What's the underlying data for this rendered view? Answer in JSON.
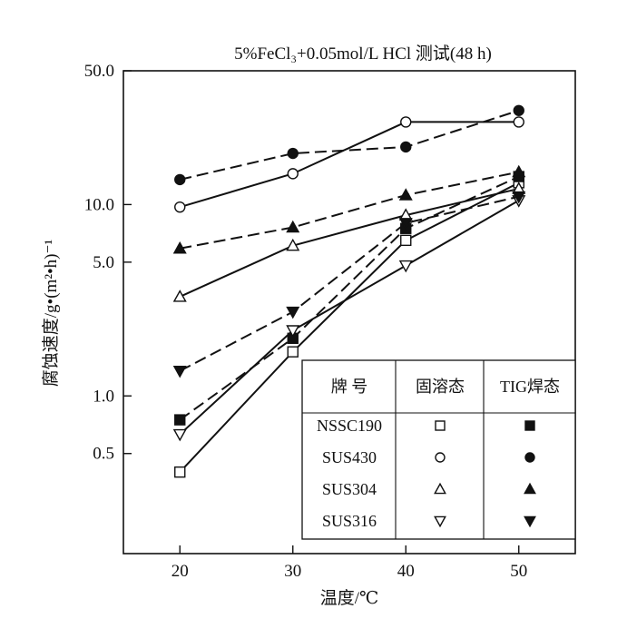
{
  "chart_data": {
    "type": "line",
    "title": "5%FeCl₃+0.05mol/L HCl 测试(48 h)",
    "xlabel": "温度/℃",
    "ylabel": "腐蚀速度/g•(m²•h)⁻¹",
    "x": [
      20,
      30,
      40,
      50
    ],
    "xlim": [
      15,
      55
    ],
    "ylim": [
      0.15,
      50
    ],
    "yscale": "log",
    "xticks": [
      "20",
      "30",
      "40",
      "50"
    ],
    "yticks": [
      {
        "value": 50,
        "label": "50.0"
      },
      {
        "value": 10,
        "label": "10.0"
      },
      {
        "value": 5,
        "label": "5.0"
      },
      {
        "value": 1,
        "label": "1.0"
      },
      {
        "value": 0.5,
        "label": "0.5"
      }
    ],
    "legend": {
      "position": "bottom-right",
      "header": [
        "牌 号",
        "固溶态",
        "TIG焊态"
      ],
      "rows": [
        {
          "name": "NSSC190",
          "solution_symbol": "□",
          "tig_symbol": "■"
        },
        {
          "name": "SUS430",
          "solution_symbol": "○",
          "tig_symbol": "●"
        },
        {
          "name": "SUS304",
          "solution_symbol": "△",
          "tig_symbol": "▲"
        },
        {
          "name": "SUS316",
          "solution_symbol": "▽",
          "tig_symbol": "▼"
        }
      ]
    },
    "series": [
      {
        "name": "NSSC190 固溶态",
        "marker": "square",
        "filled": false,
        "dashed": false,
        "values": [
          0.4,
          1.7,
          6.5,
          13
        ]
      },
      {
        "name": "NSSC190 TIG焊态",
        "marker": "square",
        "filled": true,
        "dashed": true,
        "values": [
          0.75,
          2.0,
          7.5,
          14
        ]
      },
      {
        "name": "SUS430 固溶态",
        "marker": "circle",
        "filled": false,
        "dashed": false,
        "values": [
          9.7,
          14.5,
          27,
          27
        ]
      },
      {
        "name": "SUS430 TIG焊态",
        "marker": "circle",
        "filled": true,
        "dashed": true,
        "values": [
          13.5,
          18.5,
          20,
          31
        ]
      },
      {
        "name": "SUS304 固溶态",
        "marker": "triangle-up",
        "filled": false,
        "dashed": false,
        "values": [
          3.3,
          6.1,
          8.8,
          12.1
        ]
      },
      {
        "name": "SUS304 TIG焊态",
        "marker": "triangle-up",
        "filled": true,
        "dashed": true,
        "values": [
          5.9,
          7.6,
          11.2,
          14.8
        ]
      },
      {
        "name": "SUS316 固溶态",
        "marker": "triangle-down",
        "filled": false,
        "dashed": false,
        "values": [
          0.63,
          2.2,
          4.8,
          10.5
        ]
      },
      {
        "name": "SUS316 TIG焊态",
        "marker": "triangle-down",
        "filled": true,
        "dashed": true,
        "values": [
          1.35,
          2.75,
          8.0,
          11.0
        ]
      }
    ]
  }
}
